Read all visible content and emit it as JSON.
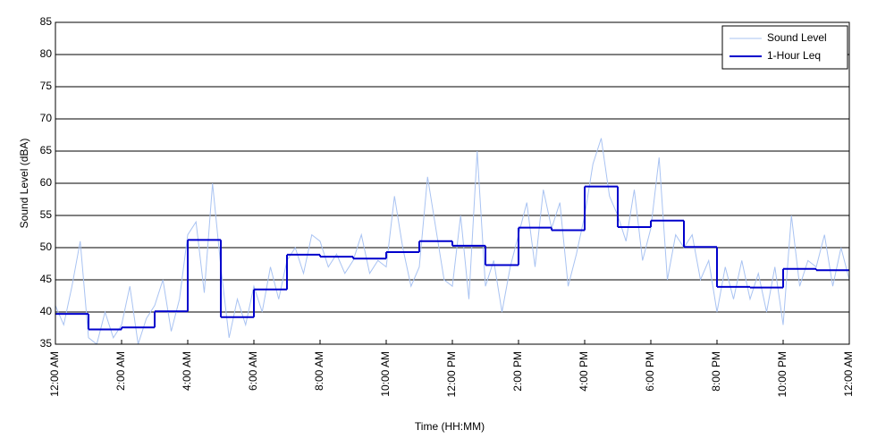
{
  "chart_data": {
    "type": "line",
    "y_label": "Sound Level (dBA)",
    "x_label": "Time (HH:MM)",
    "xlim": [
      0,
      24
    ],
    "ylim": [
      35,
      85
    ],
    "yticks": [
      35,
      40,
      45,
      50,
      55,
      60,
      65,
      70,
      75,
      80,
      85
    ],
    "xticks": [
      {
        "value": 0,
        "label": "12:00 AM"
      },
      {
        "value": 2,
        "label": "2:00 AM"
      },
      {
        "value": 4,
        "label": "4:00 AM"
      },
      {
        "value": 6,
        "label": "6:00 AM"
      },
      {
        "value": 8,
        "label": "8:00 AM"
      },
      {
        "value": 10,
        "label": "10:00 AM"
      },
      {
        "value": 12,
        "label": "12:00 PM"
      },
      {
        "value": 14,
        "label": "2:00 PM"
      },
      {
        "value": 16,
        "label": "4:00 PM"
      },
      {
        "value": 18,
        "label": "6:00 PM"
      },
      {
        "value": 20,
        "label": "8:00 PM"
      },
      {
        "value": 22,
        "label": "10:00 PM"
      },
      {
        "value": 24,
        "label": "12:00 AM"
      }
    ],
    "grid": true,
    "legend": "top-right",
    "series": [
      {
        "name": "Sound Level",
        "color": "#a9c3f2",
        "step": false,
        "x": [
          0,
          0.25,
          0.5,
          0.75,
          1,
          1.25,
          1.5,
          1.75,
          2,
          2.25,
          2.5,
          2.75,
          3,
          3.25,
          3.5,
          3.75,
          4,
          4.25,
          4.5,
          4.75,
          5,
          5.25,
          5.5,
          5.75,
          6,
          6.25,
          6.5,
          6.75,
          7,
          7.25,
          7.5,
          7.75,
          8,
          8.25,
          8.5,
          8.75,
          9,
          9.25,
          9.5,
          9.75,
          10,
          10.25,
          10.5,
          10.75,
          11,
          11.25,
          11.5,
          11.75,
          12,
          12.25,
          12.5,
          12.75,
          13,
          13.25,
          13.5,
          13.75,
          14,
          14.25,
          14.5,
          14.75,
          15,
          15.25,
          15.5,
          15.75,
          16,
          16.25,
          16.5,
          16.75,
          17,
          17.25,
          17.5,
          17.75,
          18,
          18.25,
          18.5,
          18.75,
          19,
          19.25,
          19.5,
          19.75,
          20,
          20.25,
          20.5,
          20.75,
          21,
          21.25,
          21.5,
          21.75,
          22,
          22.25,
          22.5,
          22.75,
          23,
          23.25,
          23.5,
          23.75,
          24
        ],
        "values": [
          41,
          38,
          44,
          51,
          36,
          35,
          40,
          36,
          38,
          44,
          35,
          39,
          41,
          45,
          37,
          42,
          52,
          54,
          43,
          60,
          47,
          36,
          42,
          38,
          44,
          40,
          47,
          42,
          48,
          50,
          46,
          52,
          51,
          47,
          49,
          46,
          48,
          52,
          46,
          48,
          47,
          58,
          50,
          44,
          47,
          61,
          53,
          45,
          44,
          55,
          42,
          65,
          44,
          48,
          40,
          47,
          52,
          57,
          47,
          59,
          53,
          57,
          44,
          49,
          55,
          63,
          67,
          58,
          55,
          51,
          59,
          48,
          53,
          64,
          45,
          52,
          50,
          52,
          45,
          48,
          40,
          47,
          42,
          48,
          42,
          46,
          40,
          47,
          38,
          55,
          44,
          48,
          47,
          52,
          44,
          50,
          45
        ]
      },
      {
        "name": "1-Hour Leq",
        "color": "#0000cc",
        "step": true,
        "x": [
          0,
          1,
          2,
          3,
          4,
          5,
          6,
          7,
          8,
          9,
          10,
          11,
          12,
          13,
          14,
          15,
          16,
          17,
          18,
          19,
          20,
          21,
          22,
          23
        ],
        "values": [
          39.7,
          37.3,
          37.6,
          40.1,
          51.2,
          39.2,
          43.5,
          48.9,
          48.6,
          48.3,
          49.3,
          51.0,
          50.3,
          47.3,
          53.1,
          52.7,
          59.5,
          53.2,
          54.2,
          50.1,
          43.9,
          43.8,
          46.7,
          46.5
        ]
      }
    ]
  }
}
